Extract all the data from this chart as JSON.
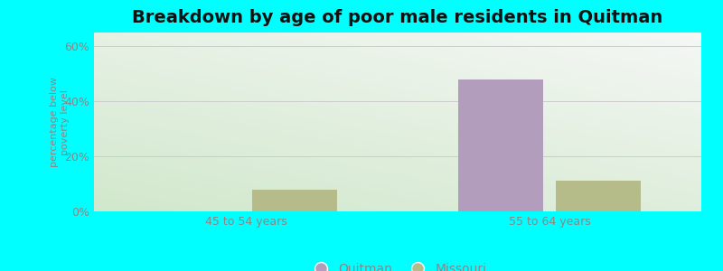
{
  "title": "Breakdown by age of poor male residents in Quitman",
  "categories": [
    "45 to 54 years",
    "55 to 64 years"
  ],
  "quitman_values": [
    0,
    48.0
  ],
  "missouri_values": [
    8.0,
    11.0
  ],
  "quitman_color": "#b39dbd",
  "missouri_color": "#b5bc8a",
  "ylabel": "percentage below\npoverty level",
  "ylim": [
    0,
    65
  ],
  "yticks": [
    0,
    20,
    40,
    60
  ],
  "yticklabels": [
    "0%",
    "20%",
    "40%",
    "60%"
  ],
  "background_color": "#00ffff",
  "plot_bg_topleft": "#e8f5e0",
  "plot_bg_topright": "#f0f8f0",
  "plot_bg_bottomleft": "#d0eccc",
  "plot_bg_bottomright": "#e8f8f0",
  "title_fontsize": 14,
  "bar_width": 0.28,
  "grid_color": "#cccccc",
  "tick_color": "#888888",
  "label_color": "#888888"
}
